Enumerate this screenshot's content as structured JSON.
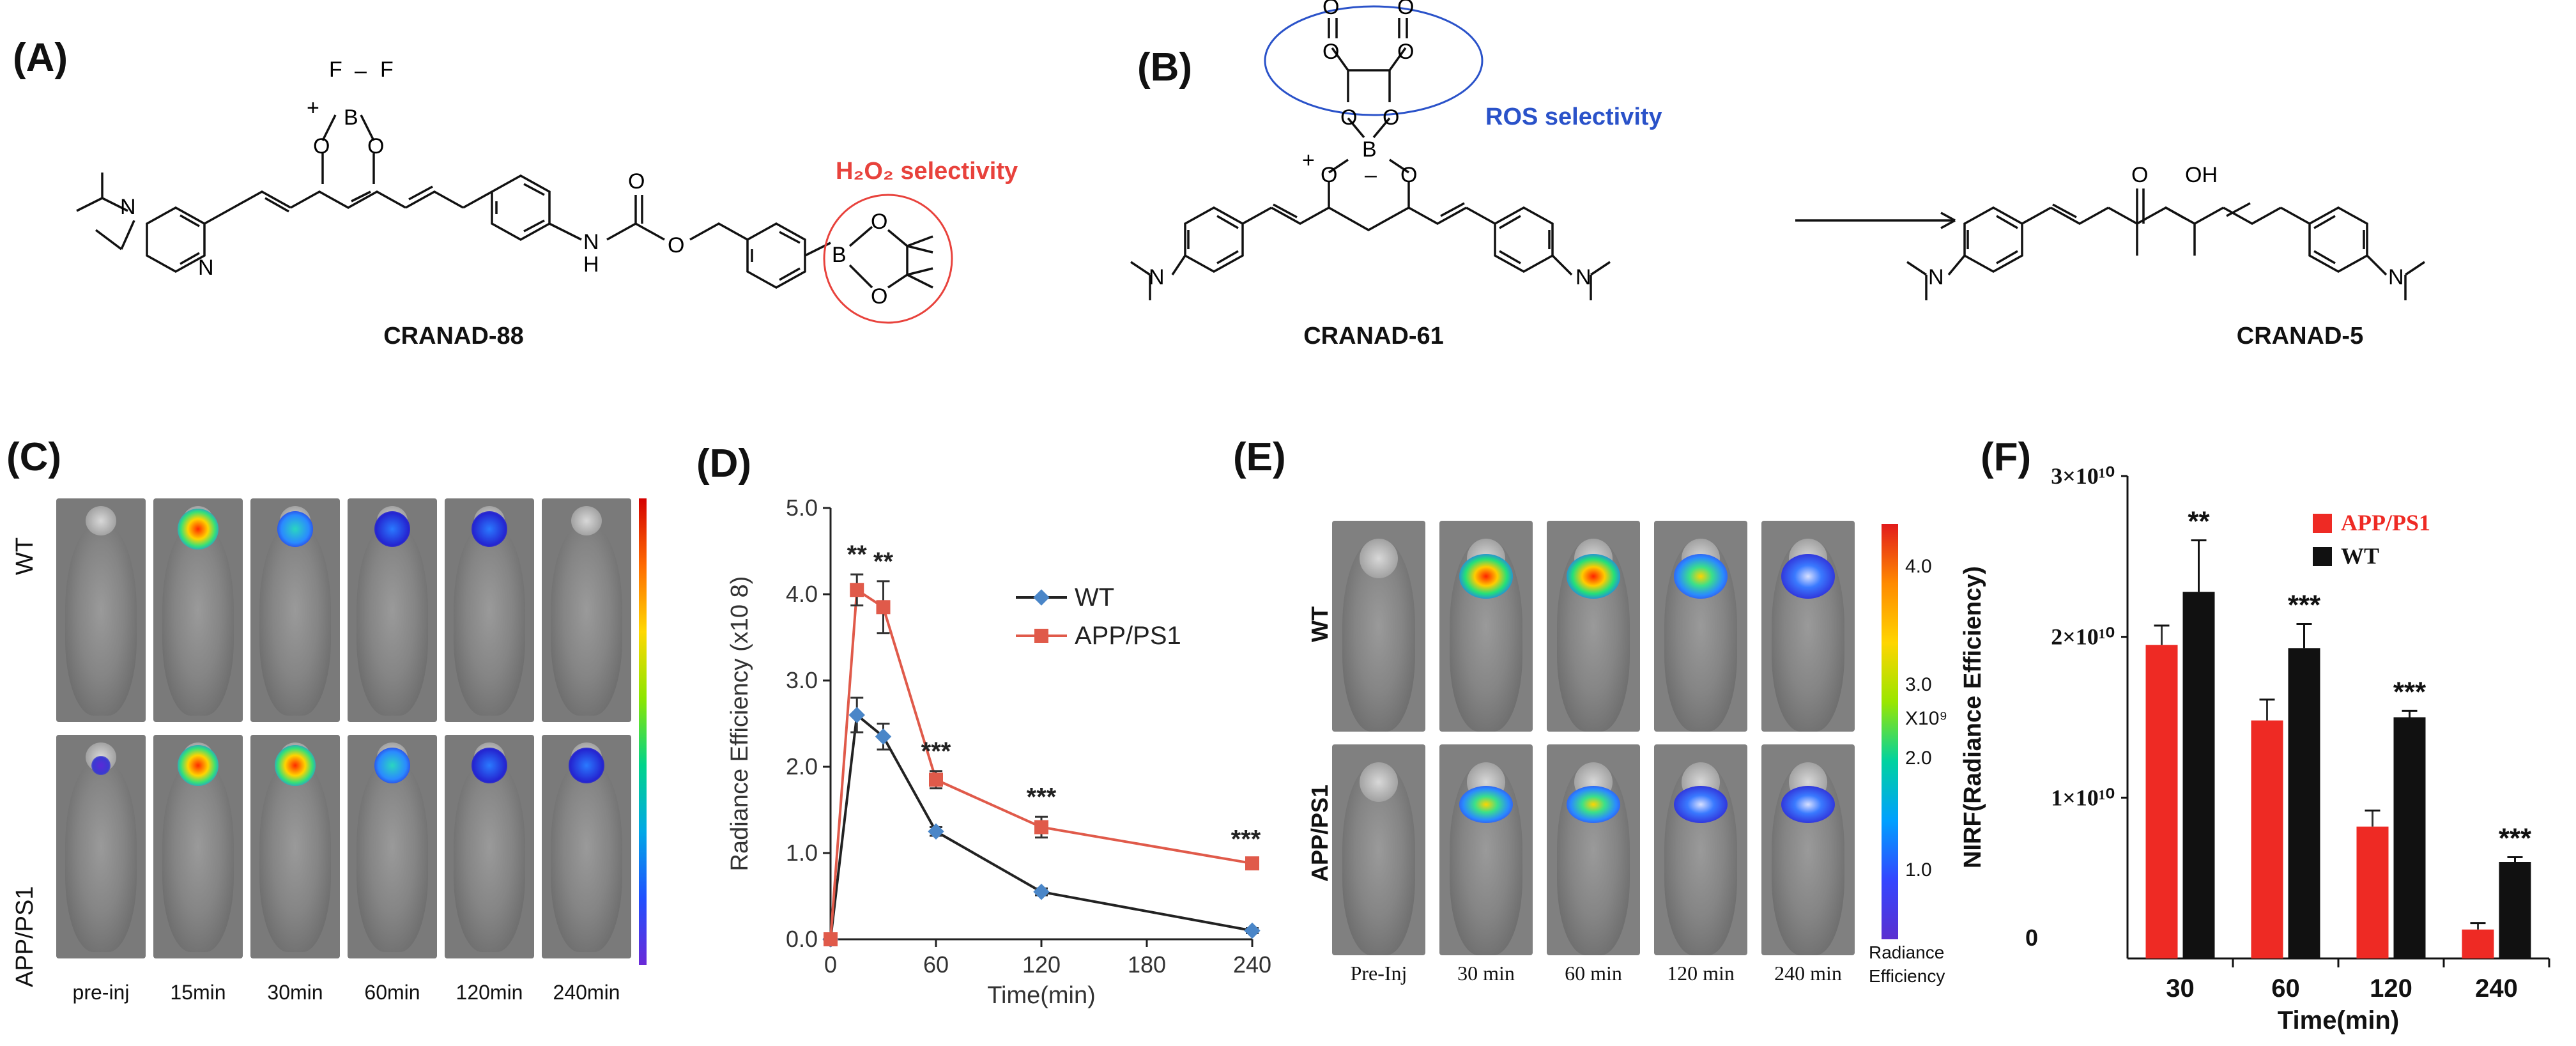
{
  "panels": {
    "A": {
      "label": "(A)",
      "compound": "CRANAD-88",
      "selectivity": "H₂O₂ selectivity",
      "selectivity_color": "#e8423c",
      "atoms": {
        "n_amine": "N",
        "n_ring": "N",
        "b": "B",
        "f1": "F",
        "f2": "F",
        "o1": "O",
        "o2": "O",
        "charge_plus": "+",
        "charge_minus": "–",
        "nh": "H",
        "nh_n": "N",
        "o_carb1": "O",
        "o_carb2": "O",
        "b2": "B",
        "o_b1": "O",
        "o_b2": "O"
      }
    },
    "B": {
      "label": "(B)",
      "compound_left": "CRANAD-61",
      "compound_right": "CRANAD-5",
      "selectivity": "ROS selectivity",
      "selectivity_color": "#2a52c9",
      "atoms": {
        "o_top1": "O",
        "o_top2": "O",
        "o_r1": "O",
        "o_r2": "O",
        "b": "B",
        "o1": "O",
        "o2": "O",
        "plus": "+",
        "minus": "–",
        "n1": "N",
        "n2": "N",
        "o_keto": "O",
        "oh": "OH",
        "n3": "N",
        "n4": "N"
      }
    },
    "C": {
      "label": "(C)",
      "rows": [
        "WT",
        "APP/PS1"
      ],
      "timepoints": [
        "pre-inj",
        "15min",
        "30min",
        "60min",
        "120min",
        "240min"
      ]
    },
    "D": {
      "label": "(D)"
    },
    "E": {
      "label": "(E)",
      "rows": [
        "WT",
        "APP/PS1"
      ],
      "timepoints": [
        "Pre-Inj",
        "30 min",
        "60 min",
        "120 min",
        "240 min"
      ],
      "colorbar": {
        "ticks": [
          "4.0",
          "3.0",
          "X10⁹",
          "2.0",
          "1.0"
        ],
        "title_line1": "Radiance",
        "title_line2": "Efficiency"
      }
    },
    "F": {
      "label": "(F)"
    }
  },
  "chart_data": [
    {
      "type": "line",
      "panel": "D",
      "xlabel": "Time(min)",
      "ylabel": "Radiance Efficiency (x10 8)",
      "xlim": [
        0,
        240
      ],
      "ylim": [
        0,
        5
      ],
      "xticks": [
        "0",
        "60",
        "120",
        "180",
        "240"
      ],
      "yticks": [
        "0.0",
        "1.0",
        "2.0",
        "3.0",
        "4.0",
        "5.0"
      ],
      "x": [
        0,
        15,
        30,
        60,
        120,
        240
      ],
      "series": [
        {
          "name": "WT",
          "color": "#4a86c8",
          "values": [
            0.0,
            2.6,
            2.35,
            1.25,
            0.55,
            0.1
          ],
          "errors": [
            0,
            0.2,
            0.15,
            0.05,
            0.04,
            0.03
          ]
        },
        {
          "name": "APP/PS1",
          "color": "#e05a4a",
          "values": [
            0.0,
            4.05,
            3.85,
            1.85,
            1.3,
            0.88
          ],
          "errors": [
            0,
            0.18,
            0.3,
            0.1,
            0.12,
            0.05
          ]
        }
      ],
      "annotations": [
        {
          "x": 15,
          "text": "**"
        },
        {
          "x": 30,
          "text": "**"
        },
        {
          "x": 60,
          "text": "***"
        },
        {
          "x": 120,
          "text": "***"
        },
        {
          "x": 240,
          "text": "***"
        }
      ]
    },
    {
      "type": "bar",
      "panel": "F",
      "xlabel": "Time(min)",
      "ylabel": "NIRF(Radiance Efficiency)",
      "categories": [
        "30",
        "60",
        "120",
        "240"
      ],
      "ylim": [
        0,
        3
      ],
      "ytick_values": [
        1,
        2,
        3
      ],
      "yticks": [
        "1×10¹⁰",
        "2×10¹⁰",
        "3×10¹⁰"
      ],
      "ytick_zero": "0",
      "yscale": "x10^10",
      "series": [
        {
          "name": "APP/PS1",
          "color": "#ee2a24",
          "values": [
            1.95,
            1.48,
            0.82,
            0.18
          ],
          "errors": [
            0.12,
            0.13,
            0.1,
            0.04
          ]
        },
        {
          "name": "WT",
          "color": "#111111",
          "values": [
            2.28,
            1.93,
            1.5,
            0.6
          ],
          "errors": [
            0.32,
            0.15,
            0.04,
            0.03
          ]
        }
      ],
      "annotations": [
        "**",
        "***",
        "***",
        "***"
      ]
    }
  ]
}
